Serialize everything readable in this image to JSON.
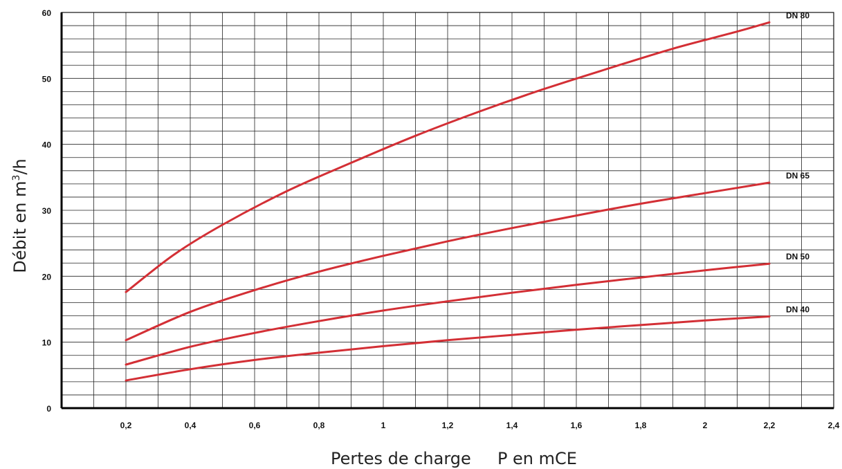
{
  "chart_data": {
    "type": "line",
    "title": "",
    "xlabel": "Pertes de charge     P en mCE",
    "ylabel": {
      "prefix": "Débit en m",
      "sup": "3",
      "suffix": "/h"
    },
    "xlim": [
      0,
      2.4
    ],
    "ylim": [
      0,
      60
    ],
    "x_ticks": [
      {
        "value": 0.2,
        "label": "0,2"
      },
      {
        "value": 0.4,
        "label": "0,4"
      },
      {
        "value": 0.6,
        "label": "0,6"
      },
      {
        "value": 0.8,
        "label": "0,8"
      },
      {
        "value": 1.0,
        "label": "1"
      },
      {
        "value": 1.2,
        "label": "1,2"
      },
      {
        "value": 1.4,
        "label": "1,4"
      },
      {
        "value": 1.6,
        "label": "1,6"
      },
      {
        "value": 1.8,
        "label": "1,8"
      },
      {
        "value": 2.0,
        "label": "2"
      },
      {
        "value": 2.2,
        "label": "2,2"
      },
      {
        "value": 2.4,
        "label": "2,4"
      }
    ],
    "y_ticks": [
      {
        "value": 0,
        "label": "0"
      },
      {
        "value": 10,
        "label": "10"
      },
      {
        "value": 20,
        "label": "20"
      },
      {
        "value": 30,
        "label": "30"
      },
      {
        "value": 40,
        "label": "40"
      },
      {
        "value": 50,
        "label": "50"
      },
      {
        "value": 60,
        "label": "60"
      }
    ],
    "grid": {
      "x_step": 0.1,
      "y_step": 2
    },
    "line_color": "#d32f35",
    "series": [
      {
        "name": "DN 80",
        "x": [
          0.2,
          0.35,
          0.5,
          0.7,
          0.9,
          1.1,
          1.3,
          1.5,
          1.7,
          1.9,
          2.1,
          2.2
        ],
        "y": [
          17.6,
          23.3,
          27.8,
          32.9,
          37.2,
          41.3,
          45.0,
          48.4,
          51.5,
          54.5,
          57.1,
          58.5
        ]
      },
      {
        "name": "DN 65",
        "x": [
          0.2,
          0.4,
          0.6,
          0.8,
          1.0,
          1.2,
          1.4,
          1.6,
          1.8,
          2.0,
          2.2
        ],
        "y": [
          10.3,
          14.6,
          17.9,
          20.7,
          23.1,
          25.3,
          27.3,
          29.2,
          31.0,
          32.6,
          34.2
        ]
      },
      {
        "name": "DN 50",
        "x": [
          0.2,
          0.4,
          0.6,
          0.8,
          1.0,
          1.2,
          1.4,
          1.6,
          1.8,
          2.0,
          2.2
        ],
        "y": [
          6.6,
          9.3,
          11.4,
          13.2,
          14.8,
          16.2,
          17.5,
          18.7,
          19.8,
          20.9,
          21.9
        ]
      },
      {
        "name": "DN 40",
        "x": [
          0.2,
          0.4,
          0.6,
          0.8,
          1.0,
          1.2,
          1.4,
          1.6,
          1.8,
          2.0,
          2.2
        ],
        "y": [
          4.2,
          5.9,
          7.3,
          8.4,
          9.4,
          10.3,
          11.1,
          11.9,
          12.6,
          13.3,
          13.9
        ]
      }
    ]
  }
}
